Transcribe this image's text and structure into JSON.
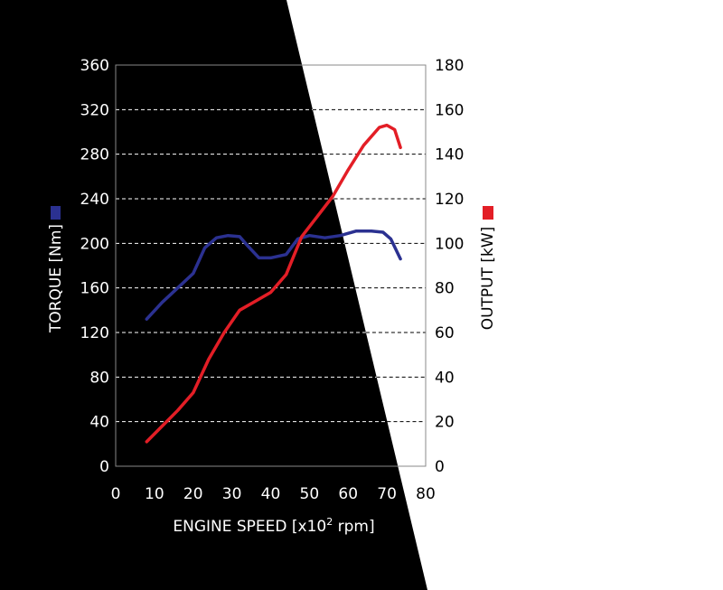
{
  "chart_data": {
    "type": "line",
    "title": "",
    "xlabel_main": "ENGINE SPEED [x10",
    "xlabel_sup": "2",
    "xlabel_tail": " rpm]",
    "ylabel_left": "TORQUE [Nm]",
    "ylabel_right": "OUTPUT [kW]",
    "xlim": [
      0,
      80
    ],
    "ylim_left": [
      0,
      360
    ],
    "ylim_right": [
      0,
      180
    ],
    "x_ticks": [
      "0",
      "10",
      "20",
      "30",
      "40",
      "50",
      "60",
      "70",
      "80"
    ],
    "y_left_ticks": [
      "0",
      "40",
      "80",
      "120",
      "160",
      "200",
      "240",
      "280",
      "320",
      "360"
    ],
    "y_right_ticks": [
      "0",
      "20",
      "40",
      "60",
      "80",
      "100",
      "120",
      "140",
      "160",
      "180"
    ],
    "grid": "horizontal dashed",
    "series": [
      {
        "color": "#2b3191",
        "axis": "left",
        "x": [
          8,
          12,
          16,
          20,
          23,
          26,
          29,
          32,
          34,
          37,
          40,
          44,
          47,
          50,
          54,
          58,
          62,
          66,
          69,
          71,
          73.5
        ],
        "values": [
          132,
          147,
          160,
          173,
          196,
          205,
          207,
          206,
          198,
          187,
          187,
          190,
          204,
          207,
          205,
          207,
          211,
          211,
          210,
          204,
          186
        ]
      },
      {
        "color": "#e31e26",
        "axis": "right",
        "x": [
          8,
          12,
          16,
          20,
          24,
          28,
          32,
          36,
          40,
          44,
          48,
          52,
          56,
          60,
          64,
          68,
          70,
          72,
          73.5
        ],
        "values": [
          11,
          18,
          25,
          33,
          48,
          60,
          70,
          74,
          78,
          86,
          103,
          112,
          121,
          133,
          144,
          152,
          153,
          151,
          143
        ]
      }
    ]
  }
}
